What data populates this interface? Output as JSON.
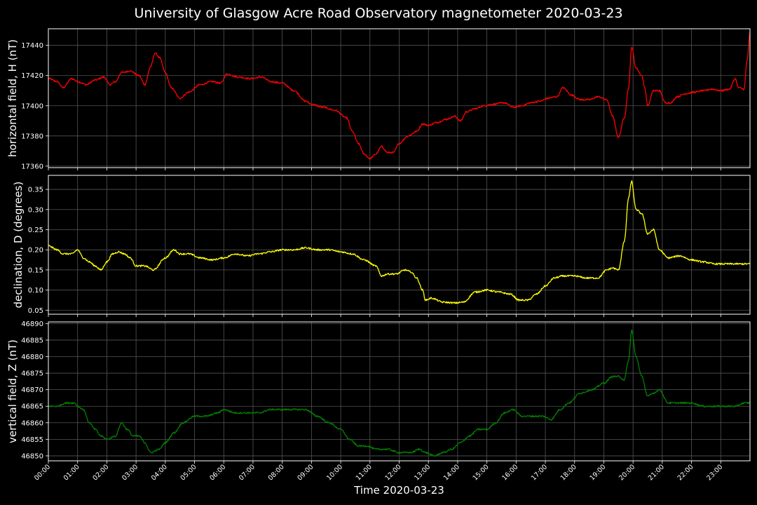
{
  "title": "University of Glasgow Acre Road Observatory magnetometer 2020-03-23",
  "chart_data": {
    "type": "line",
    "title": "University of Glasgow Acre Road Observatory magnetometer 2020-03-23",
    "xlabel": "Time 2020-03-23",
    "x_unit": "hours",
    "xlim": [
      0,
      24
    ],
    "x_tick_labels": [
      "00:00",
      "01:00",
      "02:00",
      "03:00",
      "04:00",
      "05:00",
      "06:00",
      "07:00",
      "08:00",
      "09:00",
      "10:00",
      "11:00",
      "12:00",
      "13:00",
      "14:00",
      "15:00",
      "16:00",
      "17:00",
      "18:00",
      "19:00",
      "20:00",
      "21:00",
      "22:00",
      "23:00"
    ],
    "grid": true,
    "background": "#000000",
    "panels": [
      {
        "ylabel": "horizontal field, H (nT)",
        "color": "#ff0000",
        "ylim": [
          17359,
          17451
        ],
        "yticks": [
          17360,
          17380,
          17400,
          17420,
          17440
        ],
        "ytick_labels": [
          "17360",
          "17380",
          "17400",
          "17420",
          "17440"
        ],
        "series": [
          {
            "x": [
              0,
              0.3,
              0.5,
              0.8,
              1.0,
              1.3,
              1.6,
              1.9,
              2.1,
              2.3,
              2.5,
              2.8,
              3.1,
              3.3,
              3.5,
              3.65,
              3.8,
              4.0,
              4.2,
              4.5,
              4.8,
              5.2,
              5.6,
              5.9,
              6.1,
              6.5,
              6.9,
              7.3,
              7.6,
              8.0,
              8.4,
              8.8,
              9.0,
              9.4,
              9.8,
              10.2,
              10.4,
              10.6,
              10.8,
              11.0,
              11.2,
              11.4,
              11.6,
              11.8,
              12.0,
              12.3,
              12.6,
              12.8,
              13.0,
              13.3,
              13.6,
              13.9,
              14.1,
              14.3,
              14.6,
              14.9,
              15.2,
              15.6,
              15.9,
              16.2,
              16.5,
              16.8,
              17.1,
              17.4,
              17.6,
              17.9,
              18.2,
              18.5,
              18.8,
              19.1,
              19.3,
              19.5,
              19.7,
              19.85,
              19.95,
              20.1,
              20.3,
              20.4,
              20.5,
              20.7,
              20.9,
              21.1,
              21.3,
              21.5,
              21.8,
              22.1,
              22.4,
              22.7,
              23.0,
              23.3,
              23.5,
              23.6,
              23.8,
              23.9,
              24.0
            ],
            "y": [
              17418,
              17416,
              17412,
              17418,
              17416,
              17414,
              17417,
              17419,
              17414,
              17416,
              17422,
              17423,
              17420,
              17414,
              17426,
              17435,
              17432,
              17422,
              17412,
              17405,
              17409,
              17414,
              17416,
              17415,
              17421,
              17419,
              17418,
              17419,
              17416,
              17415,
              17410,
              17403,
              17401,
              17399,
              17397,
              17392,
              17383,
              17375,
              17368,
              17365,
              17368,
              17373,
              17369,
              17369,
              17375,
              17380,
              17383,
              17388,
              17387,
              17389,
              17391,
              17393,
              17390,
              17396,
              17398,
              17400,
              17401,
              17402,
              17399,
              17400,
              17402,
              17403,
              17405,
              17406,
              17412,
              17407,
              17404,
              17404,
              17406,
              17404,
              17393,
              17379,
              17392,
              17412,
              17439,
              17425,
              17420,
              17412,
              17400,
              17410,
              17410,
              17402,
              17402,
              17406,
              17408,
              17409,
              17410,
              17411,
              17410,
              17411,
              17418,
              17412,
              17411,
              17430,
              17448
            ]
          }
        ]
      },
      {
        "ylabel": "declination, D (degrees)",
        "color": "#ffff00",
        "ylim": [
          0.04,
          0.385
        ],
        "yticks": [
          0.05,
          0.1,
          0.15,
          0.2,
          0.25,
          0.3,
          0.35
        ],
        "ytick_labels": [
          "0.05",
          "0.10",
          "0.15",
          "0.20",
          "0.25",
          "0.30",
          "0.35"
        ],
        "series": [
          {
            "x": [
              0,
              0.3,
              0.5,
              0.8,
              1.0,
              1.2,
              1.4,
              1.6,
              1.8,
              2.0,
              2.2,
              2.4,
              2.6,
              2.8,
              3.0,
              3.3,
              3.6,
              4.0,
              4.3,
              4.5,
              4.8,
              5.2,
              5.6,
              6.0,
              6.4,
              6.8,
              7.2,
              7.6,
              8.0,
              8.4,
              8.8,
              9.2,
              9.6,
              10.0,
              10.4,
              10.8,
              11.2,
              11.4,
              11.6,
              11.9,
              12.2,
              12.4,
              12.6,
              12.8,
              12.9,
              13.1,
              13.5,
              13.9,
              14.2,
              14.6,
              15.0,
              15.4,
              15.8,
              16.1,
              16.4,
              16.7,
              17.0,
              17.3,
              17.6,
              18.0,
              18.4,
              18.8,
              19.1,
              19.3,
              19.5,
              19.7,
              19.85,
              19.95,
              20.1,
              20.3,
              20.5,
              20.7,
              20.9,
              21.2,
              21.6,
              22.0,
              22.4,
              22.8,
              23.2,
              23.6,
              24.0
            ],
            "y": [
              0.21,
              0.2,
              0.19,
              0.19,
              0.2,
              0.18,
              0.17,
              0.16,
              0.15,
              0.17,
              0.19,
              0.195,
              0.19,
              0.18,
              0.16,
              0.16,
              0.15,
              0.18,
              0.2,
              0.19,
              0.19,
              0.18,
              0.175,
              0.18,
              0.19,
              0.185,
              0.19,
              0.195,
              0.2,
              0.2,
              0.205,
              0.2,
              0.2,
              0.195,
              0.19,
              0.175,
              0.16,
              0.135,
              0.14,
              0.14,
              0.15,
              0.145,
              0.13,
              0.1,
              0.075,
              0.08,
              0.07,
              0.068,
              0.07,
              0.095,
              0.1,
              0.095,
              0.09,
              0.075,
              0.075,
              0.09,
              0.11,
              0.13,
              0.135,
              0.135,
              0.13,
              0.13,
              0.15,
              0.155,
              0.15,
              0.22,
              0.33,
              0.37,
              0.3,
              0.29,
              0.24,
              0.25,
              0.2,
              0.18,
              0.185,
              0.175,
              0.17,
              0.165,
              0.165,
              0.165,
              0.165
            ]
          }
        ]
      },
      {
        "ylabel": "vertical field, Z (nT)",
        "color": "#008000",
        "ylim": [
          46848.5,
          46890.5
        ],
        "yticks": [
          46850,
          46855,
          46860,
          46865,
          46870,
          46875,
          46880,
          46885,
          46890
        ],
        "ytick_labels": [
          "46850",
          "46855",
          "46860",
          "46865",
          "46870",
          "46875",
          "46880",
          "46885",
          "46890"
        ],
        "series": [
          {
            "x": [
              0,
              0.3,
              0.6,
              0.9,
              1.0,
              1.2,
              1.4,
              1.6,
              1.8,
              2.0,
              2.3,
              2.5,
              2.7,
              2.9,
              3.1,
              3.3,
              3.5,
              3.8,
              4.0,
              4.3,
              4.6,
              5.0,
              5.4,
              5.8,
              6.0,
              6.4,
              6.8,
              7.2,
              7.6,
              8.0,
              8.4,
              8.8,
              9.2,
              9.6,
              10.0,
              10.3,
              10.6,
              10.9,
              11.2,
              11.6,
              12.0,
              12.4,
              12.7,
              12.9,
              13.2,
              13.5,
              13.8,
              14.1,
              14.4,
              14.7,
              15.0,
              15.3,
              15.6,
              15.9,
              16.2,
              16.6,
              16.9,
              17.2,
              17.5,
              17.8,
              18.2,
              18.6,
              19.0,
              19.3,
              19.5,
              19.7,
              19.85,
              19.95,
              20.1,
              20.3,
              20.5,
              20.7,
              20.9,
              21.2,
              21.6,
              22.0,
              22.4,
              22.8,
              23.2,
              23.5,
              23.8,
              24.0
            ],
            "y": [
              46865,
              46865,
              46866,
              46866,
              46865,
              46864,
              46860,
              46858,
              46856,
              46855,
              46856,
              46860,
              46858,
              46856,
              46856,
              46854,
              46851,
              46852,
              46854,
              46857,
              46860,
              46862,
              46862,
              46863,
              46864,
              46863,
              46863,
              46863,
              46864,
              46864,
              46864,
              46864,
              46862,
              46860,
              46858,
              46855,
              46853,
              46853,
              46852,
              46852,
              46851,
              46851,
              46852,
              46851,
              46850,
              46851,
              46852,
              46854,
              46856,
              46858,
              46858,
              46860,
              46863,
              46864,
              46862,
              46862,
              46862,
              46861,
              46864,
              46866,
              46869,
              46870,
              46872,
              46874,
              46874,
              46873,
              46879,
              46888,
              46880,
              46874,
              46868,
              46869,
              46870,
              46866,
              46866,
              46866,
              46865,
              46865,
              46865,
              46865,
              46866,
              46866
            ]
          }
        ]
      }
    ]
  }
}
